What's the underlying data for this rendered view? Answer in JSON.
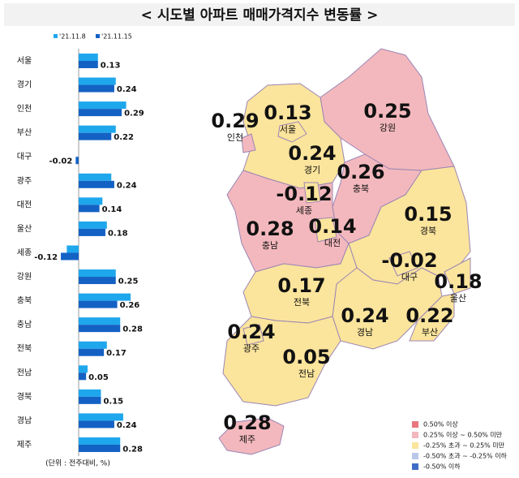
{
  "chart_data": [
    {
      "type": "hbar",
      "title": "< 시도별 아파트 매매가격지수 변동률 >",
      "note": "(단위 : 전주대비, %)",
      "categories": [
        "서울",
        "경기",
        "인천",
        "부산",
        "대구",
        "광주",
        "대전",
        "울산",
        "세종",
        "강원",
        "충북",
        "충남",
        "전북",
        "전남",
        "경북",
        "경남",
        "제주"
      ],
      "series": [
        {
          "name": "'21.11.8",
          "color": "#1ea7ec",
          "values": [
            0.13,
            0.25,
            0.32,
            0.25,
            0.0,
            0.22,
            0.16,
            0.19,
            -0.08,
            0.25,
            0.35,
            0.28,
            0.19,
            0.06,
            0.15,
            0.3,
            0.28
          ]
        },
        {
          "name": "'21.11.15",
          "color": "#1461c4",
          "values": [
            0.13,
            0.24,
            0.29,
            0.22,
            -0.02,
            0.24,
            0.14,
            0.18,
            -0.12,
            0.25,
            0.26,
            0.28,
            0.17,
            0.05,
            0.15,
            0.24,
            0.28
          ]
        }
      ]
    },
    {
      "type": "map",
      "regions": [
        {
          "name": "강원",
          "value": 0.25,
          "color": "#f3b8bd"
        },
        {
          "name": "경기",
          "value": 0.24,
          "color": "#fbe49c"
        },
        {
          "name": "충북",
          "value": 0.26,
          "color": "#f3b8bd"
        },
        {
          "name": "충남",
          "value": 0.28,
          "color": "#f3b8bd"
        },
        {
          "name": "경북",
          "value": 0.15,
          "color": "#fbe49c"
        },
        {
          "name": "경남",
          "value": 0.24,
          "color": "#fbe49c"
        },
        {
          "name": "전북",
          "value": 0.17,
          "color": "#fbe49c"
        },
        {
          "name": "전남",
          "value": 0.05,
          "color": "#fbe49c"
        },
        {
          "name": "제주",
          "value": 0.28,
          "color": "#f3b8bd"
        },
        {
          "name": "인천",
          "value": 0.29,
          "color": "#f3b8bd"
        },
        {
          "name": "서울",
          "value": 0.13,
          "color": "#fbe49c"
        },
        {
          "name": "세종",
          "value": -0.12,
          "color": "#fbe49c"
        },
        {
          "name": "대전",
          "value": 0.14,
          "color": "#fbe49c"
        },
        {
          "name": "대구",
          "value": -0.02,
          "color": "#fbe49c"
        },
        {
          "name": "울산",
          "value": 0.18,
          "color": "#fbe49c"
        },
        {
          "name": "부산",
          "value": 0.22,
          "color": "#fbe49c"
        },
        {
          "name": "광주",
          "value": 0.24,
          "color": "#fbe49c"
        }
      ],
      "legend": [
        {
          "label": "0.50% 이상",
          "color": "#e8767c"
        },
        {
          "label": "0.25% 이상 ~ 0.50% 미만",
          "color": "#f3b8bd"
        },
        {
          "label": "-0.25% 초과 ~ 0.25% 미만",
          "color": "#fbe49c"
        },
        {
          "label": "-0.50% 초과 ~ -0.25% 이하",
          "color": "#b9c8ea"
        },
        {
          "label": "-0.50% 이하",
          "color": "#3f6cc6"
        }
      ]
    }
  ]
}
